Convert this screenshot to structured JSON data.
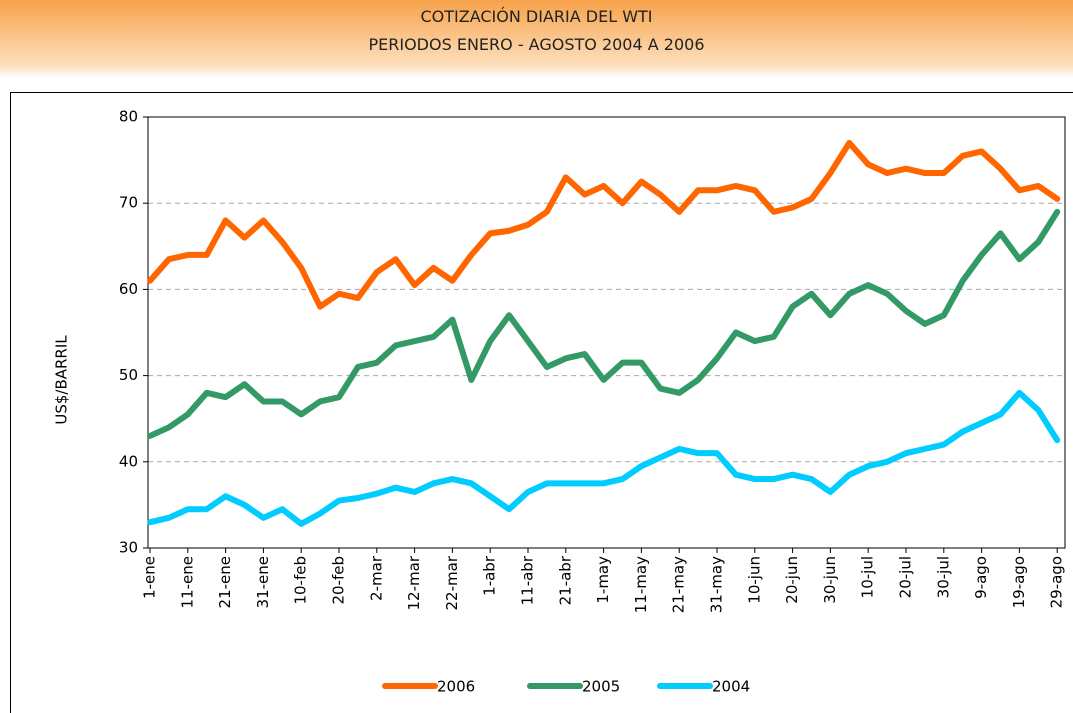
{
  "header": {
    "title": "COTIZACIÓN DIARIA DEL WTI",
    "subtitle": "PERIODOS ENERO - AGOSTO  2004 A 2006"
  },
  "chart_data": {
    "type": "line",
    "y_label": "US$/BARRIL",
    "categories": [
      "1-ene",
      null,
      "11-ene",
      null,
      "21-ene",
      null,
      "31-ene",
      null,
      "10-feb",
      null,
      "20-feb",
      null,
      "2-mar",
      null,
      "12-mar",
      null,
      "22-mar",
      null,
      "1-abr",
      null,
      "11-abr",
      null,
      "21-abr",
      null,
      "1-may",
      null,
      "11-may",
      null,
      "21-may",
      null,
      "31-may",
      null,
      "10-jun",
      null,
      "20-jun",
      null,
      "30-jun",
      null,
      "10-jul",
      null,
      "20-jul",
      null,
      "30-jul",
      null,
      "9-ago",
      null,
      "19-ago",
      null,
      "29-ago"
    ],
    "series": [
      {
        "name": "2006",
        "color": "#ff6600",
        "values": [
          61,
          63.5,
          64,
          64,
          68,
          66,
          68,
          65.5,
          62.5,
          58,
          59.5,
          59,
          62,
          63.5,
          60.5,
          62.5,
          61,
          64,
          66.5,
          66.8,
          67.5,
          69,
          73,
          71,
          72,
          70,
          72.5,
          71,
          69,
          71.5,
          71.5,
          72,
          71.5,
          69,
          69.5,
          70.5,
          73.5,
          77,
          74.5,
          73.5,
          74,
          73.5,
          73.5,
          75.5,
          76,
          74,
          71.5,
          72,
          70.5
        ]
      },
      {
        "name": "2005",
        "color": "#339966",
        "values": [
          43,
          44,
          45.5,
          48,
          47.5,
          49,
          47,
          47,
          45.5,
          47,
          47.5,
          51,
          51.5,
          53.5,
          54,
          54.5,
          56.5,
          49.5,
          54,
          57,
          54,
          51,
          52,
          52.5,
          49.5,
          51.5,
          51.5,
          48.5,
          48,
          49.5,
          52,
          55,
          54,
          54.5,
          58,
          59.5,
          57,
          59.5,
          60.5,
          59.5,
          57.5,
          56,
          57,
          61,
          64,
          66.5,
          63.5,
          65.5,
          69
        ]
      },
      {
        "name": "2004",
        "color": "#00ccff",
        "values": [
          33,
          33.5,
          34.5,
          34.5,
          36,
          35,
          33.5,
          34.5,
          32.8,
          34,
          35.5,
          35.8,
          36.3,
          37,
          36.5,
          37.5,
          38,
          37.5,
          36,
          34.5,
          36.5,
          37.5,
          37.5,
          37.5,
          37.5,
          38,
          39.5,
          40.5,
          41.5,
          41,
          41,
          38.5,
          38,
          38,
          38.5,
          38,
          36.5,
          38.5,
          39.5,
          40,
          41,
          41.5,
          42,
          43.5,
          44.5,
          45.5,
          48,
          46,
          42.5
        ]
      }
    ],
    "ylim": [
      30,
      80
    ],
    "yticks": [
      30,
      40,
      50,
      60,
      70,
      80
    ],
    "grid": true
  }
}
